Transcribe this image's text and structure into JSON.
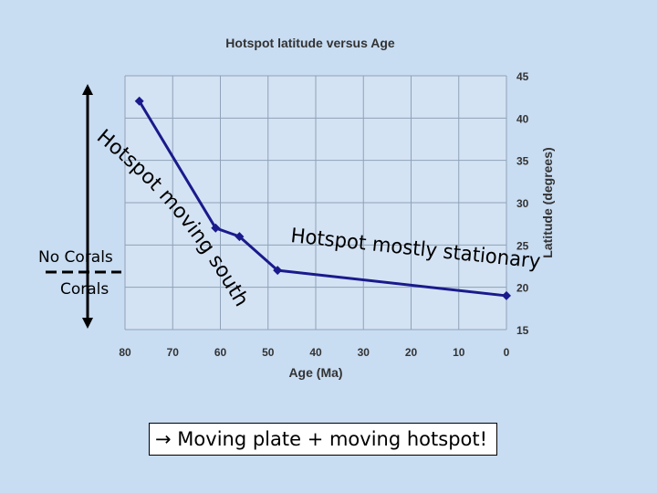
{
  "chart_data": {
    "type": "line",
    "title": "Hotspot latitude versus Age",
    "xlabel": "Age (Ma)",
    "ylabel": "Latitude (degrees)",
    "xlim": [
      80,
      0
    ],
    "ylim": [
      15,
      45
    ],
    "x_ticks": [
      80,
      70,
      60,
      50,
      40,
      30,
      20,
      10,
      0
    ],
    "y_ticks": [
      15,
      20,
      25,
      30,
      35,
      40,
      45
    ],
    "grid": true,
    "series": [
      {
        "name": "Hotspot latitude",
        "color": "#1a1a8c",
        "points": [
          {
            "x": 77,
            "y": 42
          },
          {
            "x": 61,
            "y": 27
          },
          {
            "x": 56,
            "y": 26
          },
          {
            "x": 48,
            "y": 22
          },
          {
            "x": 0,
            "y": 19
          }
        ]
      }
    ]
  },
  "annotations": {
    "moving_south": "Hotspot moving south",
    "stationary": "Hotspot mostly stationary",
    "no_corals": "No Corals",
    "corals": "Corals",
    "caption_arrow": "→",
    "caption": "Moving plate + moving hotspot!"
  },
  "colors": {
    "background": "#c8dcf2",
    "plot_area": "#d4e3f4",
    "grid": "#8fa2b8",
    "series": "#1a1a8c"
  }
}
